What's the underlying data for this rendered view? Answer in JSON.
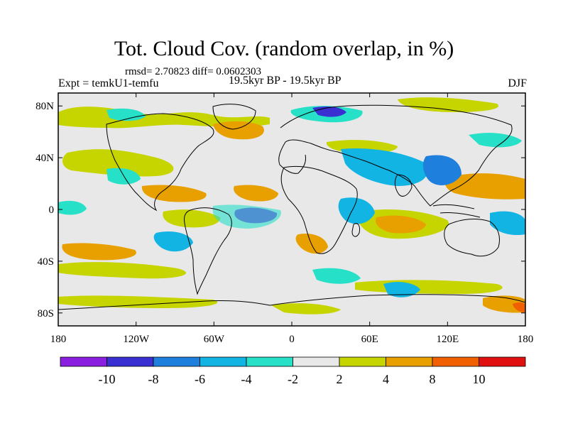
{
  "title": "Tot. Cloud Cov. (random overlap, in %)",
  "stats_line": "rmsd= 2.70823 diff= 0.0602303",
  "expt_line": "Expt = temkU1-temfu",
  "period_line": "19.5kyr BP - 19.5kyr BP",
  "season": "DJF",
  "x_ticks": [
    "180",
    "120W",
    "60W",
    "0",
    "60E",
    "120E",
    "180"
  ],
  "y_ticks": [
    "80N",
    "40N",
    "0",
    "40S",
    "80S"
  ],
  "colorbar": {
    "levels": [
      "-10",
      "-8",
      "-6",
      "-4",
      "-2",
      "2",
      "4",
      "8",
      "10"
    ],
    "colors": [
      "#8a1fe0",
      "#3a2fd0",
      "#1f7fdc",
      "#12b4e4",
      "#26e0c8",
      "#e8e8e8",
      "#c6d400",
      "#e8a000",
      "#f06000",
      "#e01010"
    ]
  },
  "colors": {
    "background": "#e8e8e8",
    "coastline": "#000000"
  }
}
